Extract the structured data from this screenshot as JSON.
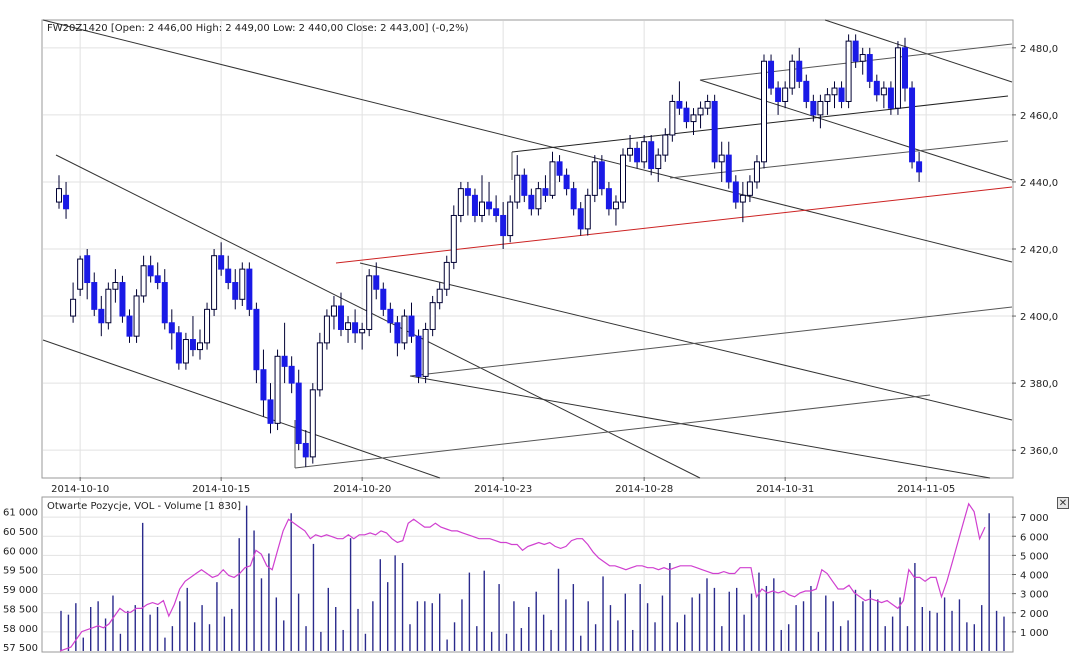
{
  "main_panel": {
    "header_text": "FW20Z1420 [Open: 2 446,00  High: 2 449,00  Low: 2 440,00  Close: 2 443,00] (-0,2%)"
  },
  "volume_panel": {
    "header_text": "Otwarte Pozycje, VOL - Volume [1 830]",
    "close_glyph": "✕"
  },
  "colors": {
    "candle_up": "#ffffff",
    "candle_down": "#1a1ae6",
    "candle_outline": "#000033",
    "volume_bar": "#2a2a8c",
    "open_interest_line": "#d040d0",
    "trend_red": "#cc2222",
    "grid": "#e2e2e2"
  },
  "chart_data": [
    {
      "type": "candlestick",
      "symbol": "FW20Z1420",
      "ylim": [
        2352,
        2488
      ],
      "y_ticks": [
        "2 480,0",
        "2 460,0",
        "2 440,0",
        "2 420,0",
        "2 400,0",
        "2 380,0",
        "2 360,0"
      ],
      "y_tick_values": [
        2480,
        2460,
        2440,
        2420,
        2400,
        2380,
        2360
      ],
      "x_ticks": [
        "2014-10-10",
        "2014-10-15",
        "2014-10-20",
        "2014-10-23",
        "2014-10-28",
        "2014-10-31",
        "2014-11-05"
      ],
      "x_tick_index": [
        3,
        23,
        43,
        63,
        83,
        103,
        123
      ],
      "ohlc": [
        [
          2434,
          2442,
          2432,
          2438
        ],
        [
          2436,
          2440,
          2429,
          2432
        ],
        [
          2400,
          2410,
          2398,
          2405
        ],
        [
          2408,
          2418,
          2406,
          2417
        ],
        [
          2418,
          2420,
          2405,
          2410
        ],
        [
          2410,
          2413,
          2400,
          2402
        ],
        [
          2402,
          2406,
          2394,
          2398
        ],
        [
          2398,
          2410,
          2396,
          2408
        ],
        [
          2408,
          2414,
          2404,
          2410
        ],
        [
          2410,
          2412,
          2398,
          2400
        ],
        [
          2400,
          2402,
          2392,
          2394
        ],
        [
          2394,
          2408,
          2392,
          2406
        ],
        [
          2406,
          2418,
          2404,
          2415
        ],
        [
          2415,
          2418,
          2410,
          2412
        ],
        [
          2412,
          2416,
          2408,
          2410
        ],
        [
          2410,
          2414,
          2396,
          2398
        ],
        [
          2398,
          2402,
          2390,
          2395
        ],
        [
          2395,
          2397,
          2384,
          2386
        ],
        [
          2386,
          2395,
          2384,
          2393
        ],
        [
          2393,
          2400,
          2388,
          2390
        ],
        [
          2390,
          2396,
          2387,
          2392
        ],
        [
          2392,
          2404,
          2390,
          2402
        ],
        [
          2402,
          2420,
          2400,
          2418
        ],
        [
          2418,
          2422,
          2412,
          2414
        ],
        [
          2414,
          2418,
          2408,
          2410
        ],
        [
          2410,
          2414,
          2402,
          2405
        ],
        [
          2405,
          2416,
          2403,
          2414
        ],
        [
          2414,
          2416,
          2400,
          2402
        ],
        [
          2402,
          2404,
          2380,
          2384
        ],
        [
          2384,
          2390,
          2370,
          2375
        ],
        [
          2375,
          2380,
          2365,
          2368
        ],
        [
          2368,
          2390,
          2366,
          2388
        ],
        [
          2388,
          2398,
          2380,
          2385
        ],
        [
          2385,
          2388,
          2377,
          2380
        ],
        [
          2380,
          2384,
          2360,
          2362
        ],
        [
          2362,
          2366,
          2355,
          2358
        ],
        [
          2358,
          2380,
          2356,
          2378
        ],
        [
          2378,
          2395,
          2376,
          2392
        ],
        [
          2392,
          2402,
          2390,
          2400
        ],
        [
          2400,
          2406,
          2396,
          2403
        ],
        [
          2403,
          2407,
          2394,
          2396
        ],
        [
          2396,
          2400,
          2392,
          2398
        ],
        [
          2398,
          2402,
          2392,
          2395
        ],
        [
          2395,
          2398,
          2390,
          2396
        ],
        [
          2396,
          2414,
          2394,
          2412
        ],
        [
          2412,
          2416,
          2405,
          2408
        ],
        [
          2408,
          2410,
          2400,
          2402
        ],
        [
          2402,
          2404,
          2395,
          2398
        ],
        [
          2398,
          2400,
          2388,
          2392
        ],
        [
          2392,
          2402,
          2390,
          2400
        ],
        [
          2400,
          2404,
          2392,
          2394
        ],
        [
          2394,
          2396,
          2380,
          2382
        ],
        [
          2382,
          2398,
          2380,
          2396
        ],
        [
          2396,
          2406,
          2394,
          2404
        ],
        [
          2404,
          2410,
          2402,
          2408
        ],
        [
          2408,
          2418,
          2406,
          2416
        ],
        [
          2416,
          2433,
          2414,
          2430
        ],
        [
          2430,
          2440,
          2428,
          2438
        ],
        [
          2438,
          2440,
          2430,
          2436
        ],
        [
          2436,
          2438,
          2428,
          2430
        ],
        [
          2430,
          2442,
          2428,
          2434
        ],
        [
          2434,
          2440,
          2430,
          2432
        ],
        [
          2432,
          2436,
          2428,
          2430
        ],
        [
          2430,
          2434,
          2420,
          2424
        ],
        [
          2424,
          2436,
          2422,
          2434
        ],
        [
          2434,
          2448,
          2432,
          2442
        ],
        [
          2442,
          2444,
          2434,
          2436
        ],
        [
          2436,
          2438,
          2430,
          2432
        ],
        [
          2432,
          2440,
          2430,
          2438
        ],
        [
          2438,
          2442,
          2434,
          2436
        ],
        [
          2436,
          2449,
          2435,
          2446
        ],
        [
          2446,
          2448,
          2440,
          2442
        ],
        [
          2442,
          2444,
          2436,
          2438
        ],
        [
          2438,
          2440,
          2430,
          2432
        ],
        [
          2432,
          2434,
          2424,
          2426
        ],
        [
          2426,
          2438,
          2424,
          2436
        ],
        [
          2436,
          2448,
          2434,
          2446
        ],
        [
          2446,
          2448,
          2436,
          2438
        ],
        [
          2438,
          2440,
          2430,
          2432
        ],
        [
          2432,
          2436,
          2427,
          2434
        ],
        [
          2434,
          2450,
          2432,
          2448
        ],
        [
          2448,
          2454,
          2446,
          2450
        ],
        [
          2450,
          2452,
          2444,
          2446
        ],
        [
          2446,
          2454,
          2444,
          2452
        ],
        [
          2452,
          2454,
          2442,
          2444
        ],
        [
          2444,
          2450,
          2440,
          2448
        ],
        [
          2448,
          2456,
          2446,
          2454
        ],
        [
          2454,
          2466,
          2452,
          2464
        ],
        [
          2464,
          2470,
          2460,
          2462
        ],
        [
          2462,
          2464,
          2456,
          2458
        ],
        [
          2458,
          2462,
          2454,
          2460
        ],
        [
          2460,
          2464,
          2456,
          2462
        ],
        [
          2462,
          2466,
          2460,
          2464
        ],
        [
          2464,
          2466,
          2444,
          2446
        ],
        [
          2446,
          2452,
          2440,
          2448
        ],
        [
          2448,
          2452,
          2438,
          2440
        ],
        [
          2440,
          2442,
          2432,
          2434
        ],
        [
          2434,
          2440,
          2428,
          2436
        ],
        [
          2436,
          2442,
          2434,
          2440
        ],
        [
          2440,
          2448,
          2438,
          2446
        ],
        [
          2446,
          2478,
          2444,
          2476
        ],
        [
          2476,
          2478,
          2466,
          2468
        ],
        [
          2468,
          2470,
          2460,
          2464
        ],
        [
          2464,
          2470,
          2462,
          2468
        ],
        [
          2468,
          2478,
          2466,
          2476
        ],
        [
          2476,
          2480,
          2468,
          2470
        ],
        [
          2470,
          2472,
          2462,
          2464
        ],
        [
          2464,
          2466,
          2458,
          2460
        ],
        [
          2460,
          2466,
          2456,
          2464
        ],
        [
          2464,
          2468,
          2460,
          2466
        ],
        [
          2466,
          2470,
          2462,
          2468
        ],
        [
          2468,
          2470,
          2462,
          2464
        ],
        [
          2464,
          2484,
          2462,
          2482
        ],
        [
          2482,
          2484,
          2474,
          2476
        ],
        [
          2476,
          2480,
          2472,
          2478
        ],
        [
          2478,
          2480,
          2468,
          2470
        ],
        [
          2470,
          2472,
          2464,
          2466
        ],
        [
          2466,
          2470,
          2462,
          2468
        ],
        [
          2468,
          2470,
          2460,
          2462
        ],
        [
          2462,
          2482,
          2460,
          2480
        ],
        [
          2480,
          2483,
          2464,
          2468
        ],
        [
          2468,
          2470,
          2444,
          2446
        ],
        [
          2446,
          2449,
          2440,
          2443
        ]
      ]
    },
    {
      "type": "bar",
      "series": [
        {
          "name": "VOL",
          "axis": "right",
          "ylim": [
            0,
            8000
          ],
          "y_ticks": [
            "7 000",
            "6 000",
            "5 000",
            "4 000",
            "3 000",
            "2 000",
            "1 000"
          ],
          "y_tick_values": [
            7000,
            6000,
            5000,
            4000,
            3000,
            2000,
            1000
          ],
          "values": [
            2100,
            1900,
            2500,
            700,
            2300,
            2600,
            1700,
            2900,
            900,
            2100,
            2400,
            6700,
            1900,
            2300,
            700,
            1300,
            2600,
            3300,
            1500,
            2400,
            1400,
            3600,
            1800,
            2200,
            5900,
            7600,
            6300,
            3800,
            5100,
            2800,
            1600,
            7200,
            3000,
            1300,
            5600,
            1000,
            3300,
            2300,
            1100,
            5900,
            2200,
            900,
            2600,
            4800,
            3600,
            5000,
            4600,
            1400,
            2600,
            2600,
            2500,
            3000,
            600,
            1500,
            2700,
            4100,
            1300,
            4200,
            1000,
            3500,
            900,
            2600,
            1200,
            2300,
            3100,
            1900,
            1100,
            4300,
            2700,
            3500,
            800,
            2600,
            1400,
            3900,
            2400,
            1600,
            3000,
            1100,
            3500,
            2500,
            1500,
            2900,
            4600,
            1500,
            1900,
            2800,
            3000,
            3800,
            3300,
            1300,
            3100,
            3300,
            1900,
            3000,
            4100,
            3400,
            3800,
            1100,
            1400,
            2400,
            2600,
            3400,
            1000,
            2900,
            2600,
            1300,
            1600,
            3200,
            2600,
            3200,
            2700,
            1300,
            1800,
            2800,
            1300,
            4600,
            2300,
            2100,
            2000,
            2800,
            2100,
            2700,
            1500,
            1400,
            2400,
            7200,
            2100,
            1800
          ]
        }
      ]
    },
    {
      "type": "line",
      "series": [
        {
          "name": "Otwarte Pozycje",
          "axis": "left",
          "ylim": [
            57400,
            61350
          ],
          "y_ticks": [
            "61 000",
            "60 500",
            "60 000",
            "59 500",
            "59 000",
            "58 500",
            "58 000",
            "57 500"
          ],
          "y_tick_values": [
            61000,
            60500,
            60000,
            59500,
            59000,
            58500,
            58000,
            57500
          ],
          "values": [
            57400,
            57450,
            57500,
            57700,
            57900,
            57950,
            58000,
            58050,
            58000,
            58100,
            58300,
            58500,
            58400,
            58400,
            58500,
            58500,
            58600,
            58650,
            58600,
            58700,
            58300,
            58600,
            59000,
            59200,
            59300,
            59400,
            59500,
            59400,
            59300,
            59350,
            59500,
            59350,
            59300,
            59400,
            59550,
            59600,
            60000,
            59900,
            59600,
            59500,
            60000,
            60500,
            60800,
            60700,
            60600,
            60500,
            60300,
            60400,
            60350,
            60400,
            60350,
            60300,
            60300,
            60400,
            60300,
            60400,
            60400,
            60450,
            60400,
            60500,
            60450,
            60300,
            60200,
            60250,
            60700,
            60800,
            60700,
            60600,
            60600,
            60700,
            60600,
            60550,
            60500,
            60500,
            60450,
            60400,
            60350,
            60300,
            60300,
            60300,
            60250,
            60200,
            60200,
            60150,
            60150,
            60000,
            60100,
            60150,
            60200,
            60150,
            60200,
            60100,
            60050,
            60100,
            60250,
            60300,
            60300,
            60150,
            59950,
            59800,
            59700,
            59600,
            59600,
            59550,
            59500,
            59550,
            59600,
            59600,
            59550,
            59550,
            59500,
            59550,
            59500,
            59550,
            59600,
            59600,
            59600,
            59550,
            59500,
            59450,
            59400,
            59400,
            59450,
            59400,
            59400,
            59550,
            59550,
            59550,
            58800,
            59000,
            58900,
            58950,
            58900,
            58950,
            58850,
            58800,
            58900,
            58950,
            58950,
            59000,
            59500,
            59400,
            59200,
            59000,
            59000,
            59100,
            58900,
            58800,
            58700,
            58750,
            58700,
            58650,
            58700,
            58600,
            58500,
            58700,
            59500,
            59300,
            59300,
            59200,
            59300,
            59300,
            58800,
            59200,
            59700,
            60200,
            60700,
            61200,
            61000,
            60300,
            60600
          ]
        }
      ]
    }
  ]
}
